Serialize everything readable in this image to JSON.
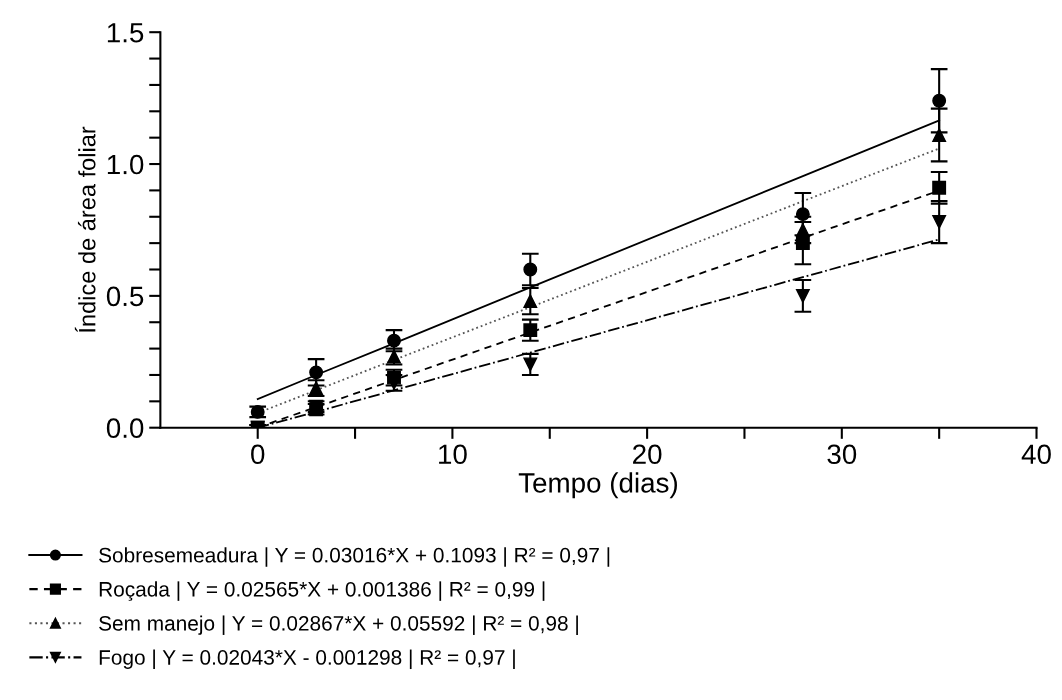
{
  "chart_data": {
    "type": "scatter",
    "xlabel": "Tempo (dias)",
    "ylabel": "Índice de área foliar",
    "xlim": [
      -5,
      40
    ],
    "xticks": [
      0,
      {
        "value": 5,
        "label": null
      },
      10,
      {
        "value": 15,
        "label": null
      },
      20,
      {
        "value": 25,
        "label": null
      },
      30,
      {
        "value": 35,
        "label": null
      },
      40
    ],
    "ylim": [
      0,
      1.5
    ],
    "yticks": [
      {
        "value": 0,
        "label": "0.0"
      },
      {
        "value": 0.1,
        "label": null
      },
      {
        "value": 0.2,
        "label": null
      },
      {
        "value": 0.3,
        "label": null
      },
      {
        "value": 0.4,
        "label": null
      },
      {
        "value": 0.5,
        "label": "0.5"
      },
      {
        "value": 0.6,
        "label": null
      },
      {
        "value": 0.7,
        "label": null
      },
      {
        "value": 0.8,
        "label": null
      },
      {
        "value": 0.9,
        "label": null
      },
      {
        "value": 1.0,
        "label": "1.0"
      },
      {
        "value": 1.1,
        "label": null
      },
      {
        "value": 1.2,
        "label": null
      },
      {
        "value": 1.3,
        "label": null
      },
      {
        "value": 1.4,
        "label": null
      },
      {
        "value": 1.5,
        "label": "1.5"
      }
    ],
    "x": [
      0,
      3,
      7,
      14,
      28,
      35
    ],
    "grid": false,
    "legend": "bottom",
    "series": [
      {
        "name": "Sobresemeadura | Y = 0.03016*X + 0.1093 | R² = 0,97 |",
        "color": "#000000",
        "marker": "circle",
        "values": [
          0.06,
          0.21,
          0.33,
          0.6,
          0.81,
          1.24
        ],
        "errors": [
          0.02,
          0.05,
          0.04,
          0.06,
          0.08,
          0.12
        ]
      },
      {
        "type": "line",
        "color": "#000000",
        "line_style": "solid",
        "values": [
          0.109,
          0.2,
          0.32,
          0.532,
          0.954,
          1.165
        ]
      },
      {
        "name": "Roçada | Y = 0.02565*X + 0.001386 | R² = 0,99 |",
        "color": "#000000",
        "marker": "square",
        "values": [
          0.0,
          0.07,
          0.19,
          0.37,
          0.7,
          0.91
        ],
        "errors": [
          0.01,
          0.02,
          0.03,
          0.04,
          0.08,
          0.06
        ]
      },
      {
        "type": "line",
        "color": "#000000",
        "line_style": "dashed",
        "values": [
          0.001,
          0.078,
          0.181,
          0.361,
          0.72,
          0.899
        ]
      },
      {
        "name": "Sem manejo | Y = 0.02867*X + 0.05592 | R² = 0,98 |",
        "color": "#000000",
        "marker": "triangle",
        "values": [
          null,
          0.15,
          0.27,
          0.48,
          0.75,
          1.11
        ],
        "errors": [
          null,
          0.03,
          0.03,
          0.05,
          0.05,
          0.1
        ]
      },
      {
        "type": "line",
        "color": "#555555",
        "line_style": "dotted",
        "values": [
          0.056,
          0.142,
          0.257,
          0.457,
          0.859,
          1.059
        ]
      },
      {
        "name": "Fogo | Y = 0.02043*X - 0.001298 | R² = 0,97 |",
        "color": "#000000",
        "marker": "triangle_down",
        "values": [
          0.0,
          0.08,
          0.17,
          0.24,
          0.5,
          0.78
        ],
        "errors": [
          0.01,
          0.02,
          0.03,
          0.04,
          0.06,
          0.08
        ]
      },
      {
        "type": "line",
        "color": "#000000",
        "line_style": "dashdot",
        "values": [
          0.0,
          0.06,
          0.142,
          0.285,
          0.571,
          0.714
        ]
      }
    ]
  }
}
